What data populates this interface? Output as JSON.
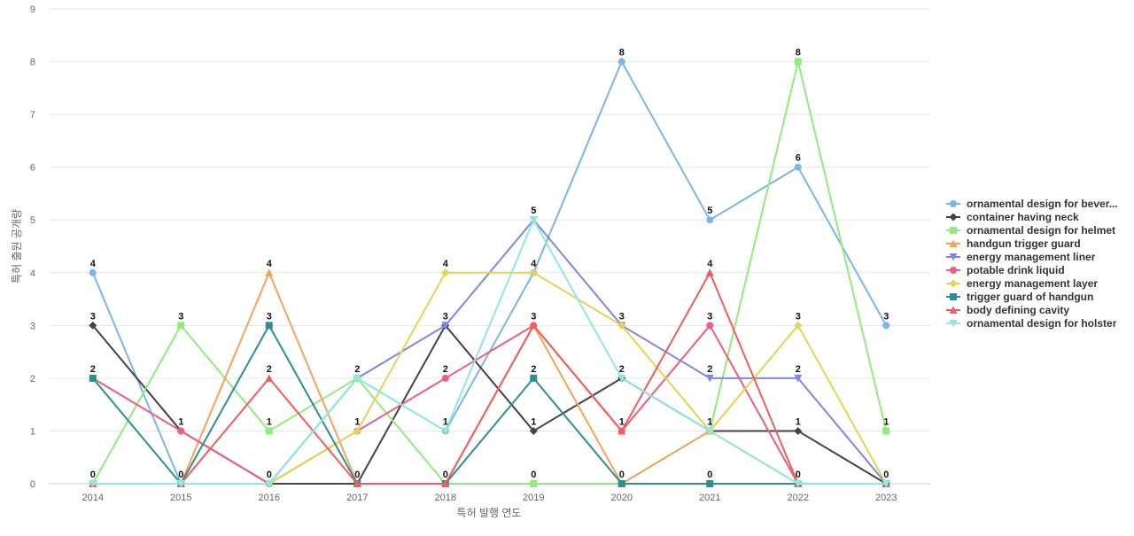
{
  "chart_data": {
    "type": "line",
    "xlabel": "특허 발행 연도",
    "ylabel": "특허 출원 공개량",
    "categories": [
      "2014",
      "2015",
      "2016",
      "2017",
      "2018",
      "2019",
      "2020",
      "2021",
      "2022",
      "2023"
    ],
    "ylim": [
      0,
      9
    ],
    "y_ticks": [
      "0",
      "1",
      "2",
      "3",
      "4",
      "5",
      "6",
      "7",
      "8",
      "9"
    ],
    "grid": true,
    "legend_position": "right",
    "series": [
      {
        "name": "ornamental design for bever...",
        "color": "#7cb5ec",
        "marker": "circle",
        "values": [
          4,
          0,
          0,
          2,
          1,
          4,
          8,
          5,
          6,
          3
        ]
      },
      {
        "name": "container having neck",
        "color": "#434348",
        "marker": "diamond",
        "values": [
          3,
          1,
          0,
          0,
          3,
          1,
          2,
          1,
          1,
          0
        ]
      },
      {
        "name": "ornamental design for helmet",
        "color": "#90ed7d",
        "marker": "square",
        "values": [
          0,
          3,
          1,
          2,
          0,
          0,
          0,
          1,
          8,
          1
        ]
      },
      {
        "name": "handgun trigger guard",
        "color": "#f7a35c",
        "marker": "triangle",
        "values": [
          0,
          0,
          4,
          0,
          0,
          3,
          0,
          1,
          0,
          0
        ]
      },
      {
        "name": "energy management liner",
        "color": "#8085e9",
        "marker": "triangle-down",
        "values": [
          0,
          0,
          0,
          2,
          3,
          5,
          3,
          2,
          2,
          0
        ]
      },
      {
        "name": "potable drink liquid",
        "color": "#f15c80",
        "marker": "circle",
        "values": [
          2,
          1,
          0,
          1,
          2,
          3,
          1,
          3,
          0,
          0
        ]
      },
      {
        "name": "energy management layer",
        "color": "#e4d354",
        "marker": "diamond",
        "values": [
          0,
          0,
          0,
          1,
          4,
          4,
          3,
          1,
          3,
          0
        ]
      },
      {
        "name": "trigger guard of handgun",
        "color": "#2b908f",
        "marker": "square",
        "values": [
          2,
          0,
          3,
          0,
          0,
          2,
          0,
          0,
          0,
          0
        ]
      },
      {
        "name": "body defining cavity",
        "color": "#f45b5b",
        "marker": "triangle",
        "values": [
          0,
          0,
          2,
          0,
          0,
          3,
          1,
          4,
          0,
          0
        ]
      },
      {
        "name": "ornamental design for holster",
        "color": "#91e8e1",
        "marker": "triangle-down",
        "values": [
          0,
          0,
          0,
          2,
          1,
          5,
          2,
          1,
          0,
          0
        ]
      }
    ],
    "data_labels": [
      {
        "category": "2014",
        "values": [
          "4",
          "3",
          "2",
          "0"
        ]
      },
      {
        "category": "2015",
        "values": [
          "3",
          "1",
          "0"
        ]
      },
      {
        "category": "2016",
        "values": [
          "4",
          "3",
          "2",
          "1",
          "0"
        ]
      },
      {
        "category": "2017",
        "values": [
          "2",
          "1",
          "0"
        ]
      },
      {
        "category": "2018",
        "values": [
          "4",
          "3",
          "2",
          "1",
          "0"
        ]
      },
      {
        "category": "2019",
        "values": [
          "5",
          "4",
          "3",
          "2",
          "1",
          "0"
        ]
      },
      {
        "category": "2020",
        "values": [
          "8",
          "3",
          "2",
          "1",
          "0"
        ]
      },
      {
        "category": "2021",
        "values": [
          "5",
          "4",
          "3",
          "2",
          "1",
          "0"
        ]
      },
      {
        "category": "2022",
        "values": [
          "8",
          "6",
          "3",
          "2",
          "1",
          "0"
        ]
      },
      {
        "category": "2023",
        "values": [
          "3",
          "1",
          "0"
        ]
      }
    ]
  }
}
